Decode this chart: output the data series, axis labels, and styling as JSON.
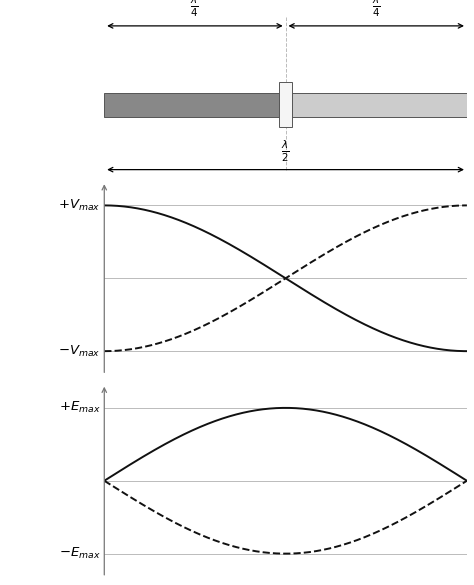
{
  "bg_color": "#ffffff",
  "antenna_left_color": "#888888",
  "antenna_right_color": "#cccccc",
  "connector_color": "#f5f5f5",
  "line_color": "#111111",
  "axis_color": "#999999",
  "grid_color": "#bbbbbb",
  "arrow_color": "#333333"
}
